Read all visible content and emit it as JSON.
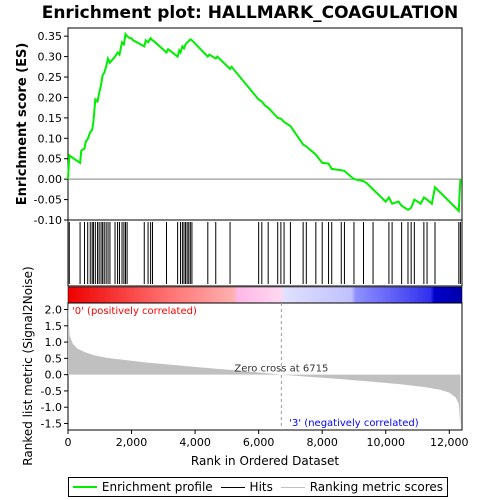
{
  "chart_data": {
    "type": "line",
    "title": "Enrichment plot: HALLMARK_COAGULATION",
    "ylabel_top": "Enrichment score (ES)",
    "ylabel_bottom": "Ranked list metric (Signal2Noise)",
    "xlabel": "Rank in Ordered Dataset",
    "xlim": [
      0,
      12400
    ],
    "ylim_es": [
      -0.1,
      0.37
    ],
    "ylim_metric": [
      -1.7,
      2.2
    ],
    "x_ticks": [
      0,
      2000,
      4000,
      6000,
      8000,
      10000,
      12000
    ],
    "x_tick_labels": [
      "0",
      "2,000",
      "4,000",
      "6,000",
      "8,000",
      "10,000",
      "12,000"
    ],
    "es_ticks": [
      -0.1,
      -0.05,
      0.0,
      0.05,
      0.1,
      0.15,
      0.2,
      0.25,
      0.3,
      0.35
    ],
    "es_tick_labels": [
      "-0.10",
      "-0.05",
      "0.00",
      "0.05",
      "0.10",
      "0.15",
      "0.20",
      "0.25",
      "0.30",
      "0.35"
    ],
    "metric_ticks": [
      -1.5,
      -1.0,
      -0.5,
      0.0,
      0.5,
      1.0,
      1.5,
      2.0
    ],
    "metric_tick_labels": [
      "-1.5",
      "-1.0",
      "-0.5",
      "0.0",
      "0.5",
      "1.0",
      "1.5",
      "2.0"
    ],
    "series": [
      {
        "name": "Enrichment profile",
        "color": "#00ee00",
        "x": [
          0,
          40,
          380,
          420,
          520,
          560,
          620,
          700,
          760,
          800,
          860,
          930,
          980,
          1040,
          1090,
          1140,
          1200,
          1260,
          1320,
          1480,
          1560,
          1620,
          1700,
          1760,
          1810,
          1860,
          1950,
          2000,
          2050,
          2400,
          2450,
          2520,
          2600,
          2660,
          2700,
          3100,
          3150,
          3450,
          3500,
          3540,
          3600,
          3650,
          3700,
          3750,
          3800,
          3850,
          3900,
          4400,
          4450,
          4650,
          4700,
          5100,
          5150,
          6000,
          6100,
          6200,
          6300,
          6600,
          6700,
          6800,
          7000,
          7400,
          7500,
          7800,
          8000,
          8200,
          8300,
          8600,
          8700,
          9000,
          9300,
          9400,
          9600,
          10000,
          10100,
          10200,
          10400,
          10500,
          10700,
          10800,
          10900,
          11000,
          11100,
          11200,
          11300,
          11450,
          11550,
          12300,
          12320,
          12350
        ],
        "y": [
          0.0,
          0.058,
          0.04,
          0.07,
          0.075,
          0.092,
          0.098,
          0.115,
          0.12,
          0.14,
          0.195,
          0.19,
          0.21,
          0.23,
          0.255,
          0.26,
          0.275,
          0.295,
          0.285,
          0.3,
          0.31,
          0.305,
          0.335,
          0.33,
          0.355,
          0.35,
          0.345,
          0.345,
          0.34,
          0.325,
          0.34,
          0.335,
          0.345,
          0.34,
          0.338,
          0.31,
          0.318,
          0.3,
          0.315,
          0.31,
          0.325,
          0.32,
          0.33,
          0.335,
          0.338,
          0.342,
          0.34,
          0.3,
          0.305,
          0.295,
          0.3,
          0.27,
          0.275,
          0.195,
          0.19,
          0.18,
          0.175,
          0.15,
          0.148,
          0.14,
          0.13,
          0.085,
          0.08,
          0.06,
          0.04,
          0.038,
          0.025,
          0.022,
          0.02,
          0.0,
          -0.005,
          -0.01,
          -0.025,
          -0.055,
          -0.045,
          -0.06,
          -0.055,
          -0.065,
          -0.075,
          -0.07,
          -0.05,
          -0.055,
          -0.06,
          -0.045,
          -0.05,
          -0.06,
          -0.02,
          -0.078,
          -0.04,
          0.0
        ]
      }
    ],
    "hits": [
      40,
      380,
      520,
      620,
      700,
      760,
      800,
      860,
      930,
      980,
      1040,
      1090,
      1140,
      1200,
      1260,
      1320,
      1480,
      1560,
      1620,
      1700,
      1760,
      1810,
      1860,
      2400,
      2520,
      2600,
      2660,
      3100,
      3450,
      3540,
      3600,
      3650,
      3700,
      3750,
      3800,
      3850,
      3900,
      4400,
      4650,
      5100,
      6000,
      6100,
      6300,
      6600,
      6700,
      6800,
      7000,
      7400,
      7500,
      7800,
      8000,
      8200,
      8300,
      8600,
      8700,
      9000,
      9300,
      9600,
      10100,
      10200,
      10500,
      10700,
      10800,
      10900,
      11200,
      11300,
      11550,
      12300,
      12350
    ],
    "metric": {
      "x": [
        0,
        50,
        150,
        300,
        500,
        800,
        1200,
        1800,
        2500,
        3300,
        4200,
        5200,
        6000,
        6715,
        7500,
        8500,
        9500,
        10500,
        11200,
        11700,
        12000,
        12200,
        12300,
        12350
      ],
      "y": [
        2.2,
        1.2,
        0.95,
        0.8,
        0.7,
        0.6,
        0.52,
        0.45,
        0.37,
        0.3,
        0.22,
        0.14,
        0.07,
        0.0,
        -0.06,
        -0.13,
        -0.21,
        -0.3,
        -0.38,
        -0.46,
        -0.55,
        -0.7,
        -0.9,
        -1.6
      ]
    },
    "zero_cross_text": "Zero cross at 6715",
    "zero_cross_x": 6715,
    "pos_label": "'0' (positively correlated)",
    "neg_label": "'3' (negatively correlated)",
    "legend": [
      {
        "label": "Enrichment profile",
        "color": "#00ee00"
      },
      {
        "label": "Hits",
        "color": "#000000"
      },
      {
        "label": "Ranking metric scores",
        "color": "#c0c0c0"
      }
    ],
    "colors": {
      "es_line": "#00ee00",
      "metric_fill": "#c0c0c0",
      "pos_label": "#ff0000",
      "neg_label": "#0000ff"
    }
  }
}
